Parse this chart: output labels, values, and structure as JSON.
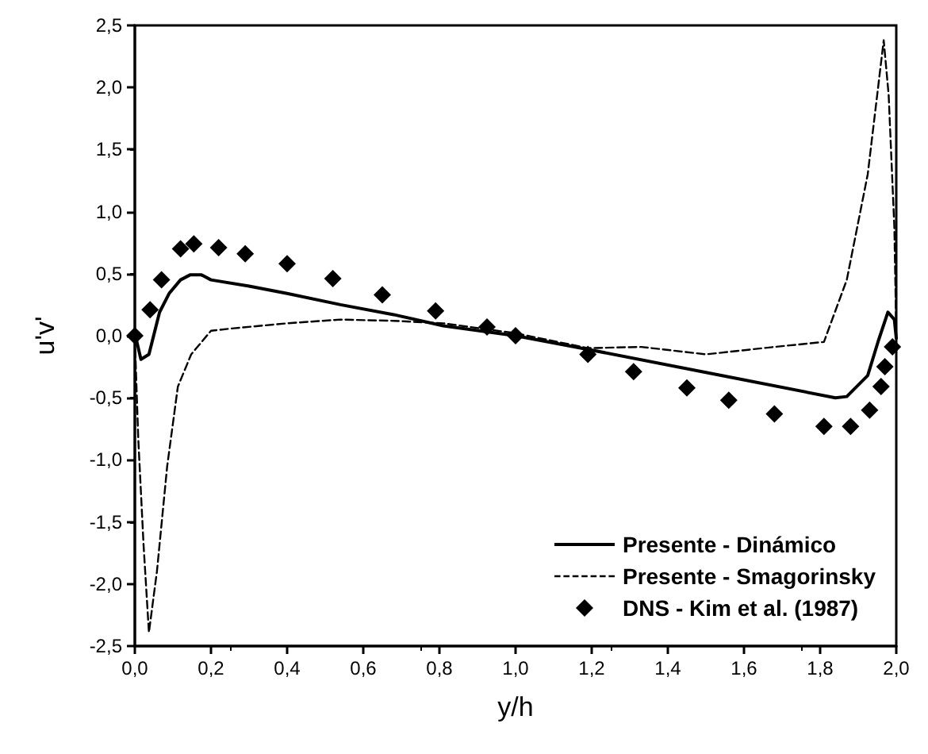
{
  "chart_data": {
    "type": "line",
    "xlabel": "y/h",
    "ylabel": "u'v'",
    "xlim": [
      0,
      2
    ],
    "xticks": [
      {
        "value": 0,
        "label": "0,0"
      },
      {
        "value": 0.2,
        "label": "0,2"
      },
      {
        "value": 0.4,
        "label": "0,4"
      },
      {
        "value": 0.6,
        "label": "0,6"
      },
      {
        "value": 0.8,
        "label": "0,8"
      },
      {
        "value": 1,
        "label": "1,0"
      },
      {
        "value": 1.2,
        "label": "1,2"
      },
      {
        "value": 1.4,
        "label": "1,4"
      },
      {
        "value": 1.6,
        "label": "1,6"
      },
      {
        "value": 1.8,
        "label": "1,8"
      },
      {
        "value": 2,
        "label": "2,0"
      }
    ],
    "ylim": [
      -2.5,
      2.5
    ],
    "yticks": [
      {
        "value": -2.5,
        "label": "-2,5"
      },
      {
        "value": -2,
        "label": "-2,0"
      },
      {
        "value": -1.5,
        "label": "-1,5"
      },
      {
        "value": -1,
        "label": "-1,0"
      },
      {
        "value": -0.5,
        "label": "-0,5"
      },
      {
        "value": 0,
        "label": "0,0"
      },
      {
        "value": 0.5,
        "label": "0,5"
      },
      {
        "value": 1,
        "label": "1,0"
      },
      {
        "value": 1.5,
        "label": "1,5"
      },
      {
        "value": 2,
        "label": "2,0"
      },
      {
        "value": 2.5,
        "label": "2,5"
      }
    ],
    "grid": false,
    "legend": "bottom right",
    "series": [
      {
        "name": "Presente - Dinámico",
        "color": "#000000",
        "marker": "none",
        "line_style": "solid",
        "x": [
          0,
          0.016,
          0.037,
          0.065,
          0.09,
          0.12,
          0.145,
          0.175,
          0.2,
          0.3,
          0.4,
          0.54,
          0.68,
          0.81,
          1.0,
          1.19,
          1.54,
          1.84,
          1.87,
          1.925,
          1.953,
          1.978,
          1.995,
          2.0
        ],
        "values": [
          0.02,
          -0.19,
          -0.15,
          0.19,
          0.34,
          0.45,
          0.49,
          0.49,
          0.45,
          0.4,
          0.34,
          0.25,
          0.17,
          0.08,
          0,
          -0.11,
          -0.32,
          -0.5,
          -0.49,
          -0.32,
          -0.04,
          0.19,
          0.13,
          -0.02
        ]
      },
      {
        "name": "Presente - Smagorinsky",
        "color": "#000000",
        "marker": "none",
        "line_style": "dashed",
        "x": [
          0,
          0.009,
          0.023,
          0.037,
          0.058,
          0.085,
          0.113,
          0.148,
          0.2,
          0.26,
          0.4,
          0.54,
          0.68,
          0.81,
          1.0,
          1.19,
          1.33,
          1.5,
          1.68,
          1.81,
          1.87,
          1.925,
          1.967,
          1.98,
          1.995,
          2.0
        ],
        "values": [
          -0.02,
          -0.83,
          -1.69,
          -2.39,
          -1.9,
          -1.05,
          -0.41,
          -0.15,
          0.04,
          0.06,
          0.1,
          0.13,
          0.12,
          0.1,
          0.02,
          -0.1,
          -0.09,
          -0.15,
          -0.09,
          -0.05,
          0.45,
          1.3,
          2.38,
          1.94,
          0.87,
          0.02
        ]
      },
      {
        "name": "DNS - Kim et al. (1987)",
        "type": "scatter",
        "color": "#000000",
        "marker": "diamond",
        "x": [
          0,
          0.04,
          0.07,
          0.12,
          0.155,
          0.22,
          0.29,
          0.4,
          0.52,
          0.65,
          0.79,
          0.925,
          1.0,
          1.19,
          1.31,
          1.45,
          1.56,
          1.68,
          1.81,
          1.88,
          1.93,
          1.96,
          1.97,
          1.99
        ],
        "values": [
          0,
          0.21,
          0.45,
          0.7,
          0.74,
          0.71,
          0.66,
          0.58,
          0.46,
          0.33,
          0.2,
          0.07,
          0,
          -0.15,
          -0.29,
          -0.42,
          -0.52,
          -0.63,
          -0.73,
          -0.73,
          -0.6,
          -0.41,
          -0.25,
          -0.09
        ]
      }
    ]
  }
}
